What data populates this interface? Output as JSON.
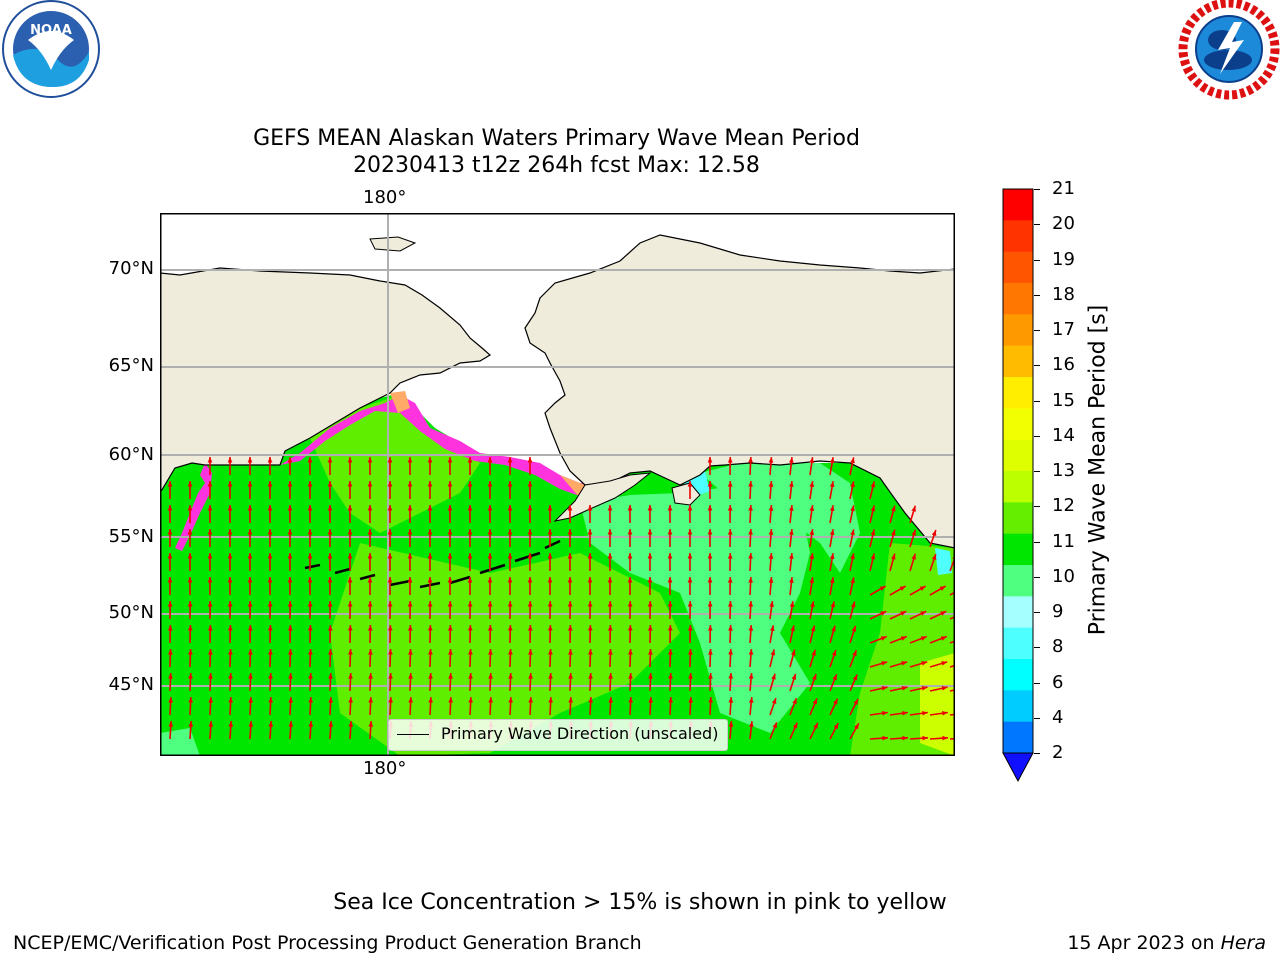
{
  "header": {
    "title_line1": "GEFS MEAN Alaskan Waters Primary Wave Mean Period",
    "title_line2": "20230413 t12z 264h fcst   Max: 12.58"
  },
  "logos": {
    "left_icon": "noaa-logo",
    "right_icon": "nws-logo"
  },
  "map": {
    "top_lon_label": "180°",
    "bottom_lon_label": "180°",
    "lat_labels": [
      "70°N",
      "65°N",
      "60°N",
      "55°N",
      "50°N",
      "45°N"
    ],
    "legend_label": "Primary Wave Direction (unscaled)",
    "colors": {
      "land": "#efecdc",
      "water_green": "#00e600",
      "water_lightgreen": "#60ee00",
      "water_seagreen": "#4fff7f",
      "ice_pink": "#ff33dd",
      "arrow": "#ee0000",
      "grid": "#b0b0b0"
    }
  },
  "colorbar": {
    "label": "Primary Wave Mean Period [s]",
    "ticks": [
      "21",
      "20",
      "19",
      "18",
      "17",
      "16",
      "15",
      "14",
      "13",
      "12",
      "11",
      "10",
      "9",
      "8",
      "6",
      "4",
      "2"
    ],
    "colors_top_to_bottom": [
      "#ff0000",
      "#ff3300",
      "#ff5500",
      "#ff7700",
      "#ff9900",
      "#ffbb00",
      "#ffee00",
      "#f2ff00",
      "#ddff00",
      "#bbff00",
      "#66ee00",
      "#00e600",
      "#4fff7f",
      "#a6ffff",
      "#4dffff",
      "#00ffff",
      "#00ccff",
      "#0077ff"
    ],
    "extend_color": "#1010ff"
  },
  "notes": {
    "sea_ice": "Sea Ice Concentration > 15% is shown in pink to yellow"
  },
  "footer": {
    "left": "NCEP/EMC/Verification Post Processing Product Generation Branch",
    "right_prefix": "15 Apr 2023 on ",
    "right_machine": "Hera"
  }
}
